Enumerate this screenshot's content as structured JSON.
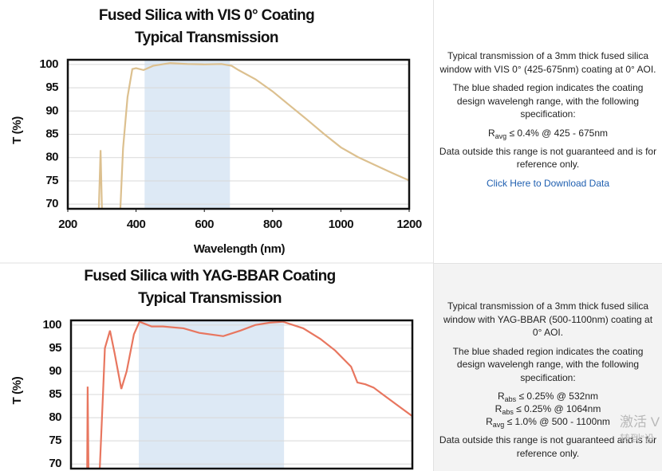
{
  "chart_data": [
    {
      "type": "line",
      "title": "Fused Silica with VIS 0° Coating",
      "subtitle": "Typical Transmission",
      "x_label": "Wavelength (nm)",
      "y_label": "T (%)",
      "xlim": [
        200,
        1200
      ],
      "xticks": [
        200,
        400,
        600,
        800,
        1000,
        1200
      ],
      "ylim": [
        69,
        101
      ],
      "yticks": [
        70,
        75,
        80,
        85,
        90,
        95,
        100
      ],
      "grid": true,
      "shade": [
        425,
        675
      ],
      "shade_color": "#dde9f5",
      "series": [
        {
          "color": "#dcc08f",
          "x": [
            291,
            296,
            300,
            354,
            362,
            375,
            389,
            400,
            422,
            450,
            500,
            550,
            600,
            650,
            680,
            700,
            750,
            800,
            850,
            900,
            950,
            1000,
            1050,
            1100,
            1150,
            1200
          ],
          "values": [
            69,
            81.6,
            69,
            69,
            82,
            93,
            99,
            99.2,
            98.8,
            99.7,
            100.3,
            100.1,
            100,
            100.1,
            99.7,
            98.8,
            96.8,
            94.2,
            91.2,
            88.2,
            85.1,
            82.2,
            80.1,
            78.4,
            76.7,
            75.1
          ]
        }
      ]
    },
    {
      "type": "line",
      "title": "Fused Silica with YAG-BBAR Coating",
      "subtitle": "Typical Transmission",
      "y_label": "T (%)",
      "xlim": [
        220,
        1630
      ],
      "ylim": [
        69,
        101
      ],
      "yticks": [
        70,
        75,
        80,
        85,
        90,
        95,
        100
      ],
      "grid": true,
      "shade": [
        500,
        1100
      ],
      "shade_color": "#dde9f5",
      "series": [
        {
          "color": "#e8765f",
          "x": [
            287,
            289,
            292,
            339,
            352,
            360,
            381,
            400,
            428,
            450,
            480,
            503,
            553,
            600,
            685,
            750,
            849,
            920,
            981,
            1040,
            1096,
            1179,
            1250,
            1311,
            1377,
            1403,
            1436,
            1470,
            1508,
            1630
          ],
          "values": [
            69,
            86.7,
            69,
            69,
            85,
            95,
            98.8,
            94,
            86.2,
            90,
            98,
            100.7,
            99.7,
            99.7,
            99.3,
            98.3,
            97.6,
            98.8,
            100,
            100.5,
            100.7,
            99.3,
            97,
            94.5,
            91,
            87.6,
            87.2,
            86.5,
            85,
            80.3
          ]
        }
      ]
    }
  ],
  "panels": [
    {
      "intro": "Typical transmission of a 3mm thick fused silica window with VIS 0° (425-675nm) coating at 0° AOI.",
      "shade_note": "The blue shaded region indicates the coating design wavelengh range, with the following specification:",
      "specs": [
        {
          "symbol": "R",
          "sub": "avg",
          "text": "≤ 0.4% @ 425 - 675nm"
        }
      ],
      "disclaimer": "Data outside this range is not guaranteed and is for reference only.",
      "link": "Click Here to Download Data"
    },
    {
      "intro": "Typical transmission of a 3mm thick fused silica window with YAG-BBAR (500-1100nm) coating at 0° AOI.",
      "shade_note": "The blue shaded region indicates the coating design wavelengh range, with the following specification:",
      "specs": [
        {
          "symbol": "R",
          "sub": "abs",
          "text": "≤ 0.25% @ 532nm"
        },
        {
          "symbol": "R",
          "sub": "abs",
          "text": "≤ 0.25% @ 1064nm"
        },
        {
          "symbol": "R",
          "sub": "avg",
          "text": "≤ 1.0% @ 500 - 1100nm"
        }
      ],
      "disclaimer": "Data outside this range is not guaranteed and is for reference only."
    }
  ],
  "watermark": [
    "激活 V",
    "转到“设"
  ]
}
